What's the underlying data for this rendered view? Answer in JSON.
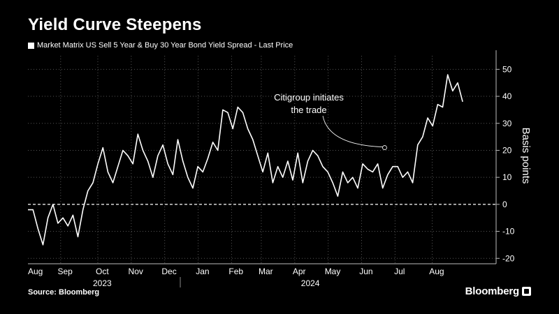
{
  "header": {
    "title": "Yield Curve Steepens",
    "legend_label": "Market Matrix US Sell 5 Year & Buy 30 Year Bond Yield Spread - Last Price"
  },
  "footer": {
    "source": "Source: Bloomberg",
    "brand": "Bloomberg"
  },
  "colors": {
    "background": "#000000",
    "series": "#ffffff",
    "grid": "#555555",
    "zero_line": "#ffffff"
  },
  "chart_data": {
    "type": "line",
    "title": "Yield Curve Steepens",
    "ylabel": "Basis points",
    "ylim": [
      -22,
      55
    ],
    "yticks": [
      50,
      40,
      30,
      20,
      10,
      0,
      -10,
      -20
    ],
    "grid": true,
    "zero_line": "dashed",
    "x_range": [
      0,
      63
    ],
    "months": [
      {
        "label": "Aug",
        "pos": 1
      },
      {
        "label": "Sep",
        "pos": 5
      },
      {
        "label": "Oct",
        "pos": 10
      },
      {
        "label": "Nov",
        "pos": 14.5
      },
      {
        "label": "Dec",
        "pos": 19
      },
      {
        "label": "Jan",
        "pos": 23.5
      },
      {
        "label": "Feb",
        "pos": 28
      },
      {
        "label": "Mar",
        "pos": 32
      },
      {
        "label": "Apr",
        "pos": 36.5
      },
      {
        "label": "May",
        "pos": 41
      },
      {
        "label": "Jun",
        "pos": 45.5
      },
      {
        "label": "Jul",
        "pos": 50
      },
      {
        "label": "Aug",
        "pos": 55
      }
    ],
    "years": [
      {
        "label": "2023",
        "pos": 10
      },
      {
        "label": "2024",
        "pos": 38
      }
    ],
    "year_divider": 20.5,
    "series": [
      {
        "values": [
          -2,
          -2,
          -9,
          -15,
          -5,
          0,
          -7,
          -5,
          -8,
          -4,
          -12,
          -2,
          5,
          8,
          15,
          21,
          12,
          8,
          14,
          20,
          18,
          15,
          26,
          20,
          16,
          10,
          18,
          22,
          15,
          11,
          24,
          16,
          10,
          6,
          14,
          12,
          17,
          23,
          20,
          35,
          34,
          28,
          36,
          34,
          28,
          24,
          18,
          12,
          19,
          8,
          14,
          10,
          16,
          9,
          19,
          8,
          16,
          20,
          18,
          14,
          12,
          8,
          3,
          12,
          8,
          10,
          6,
          15,
          13,
          12,
          15,
          6,
          11,
          14,
          14,
          10,
          12,
          8,
          22,
          25,
          32,
          29,
          37,
          36,
          48,
          42,
          45,
          38
        ],
        "x_start": 0,
        "x_end": 58.5
      }
    ],
    "annotations": [
      {
        "text_lines": [
          "Citigroup initiates",
          "the trade"
        ],
        "x": 48,
        "y": 21
      }
    ]
  }
}
